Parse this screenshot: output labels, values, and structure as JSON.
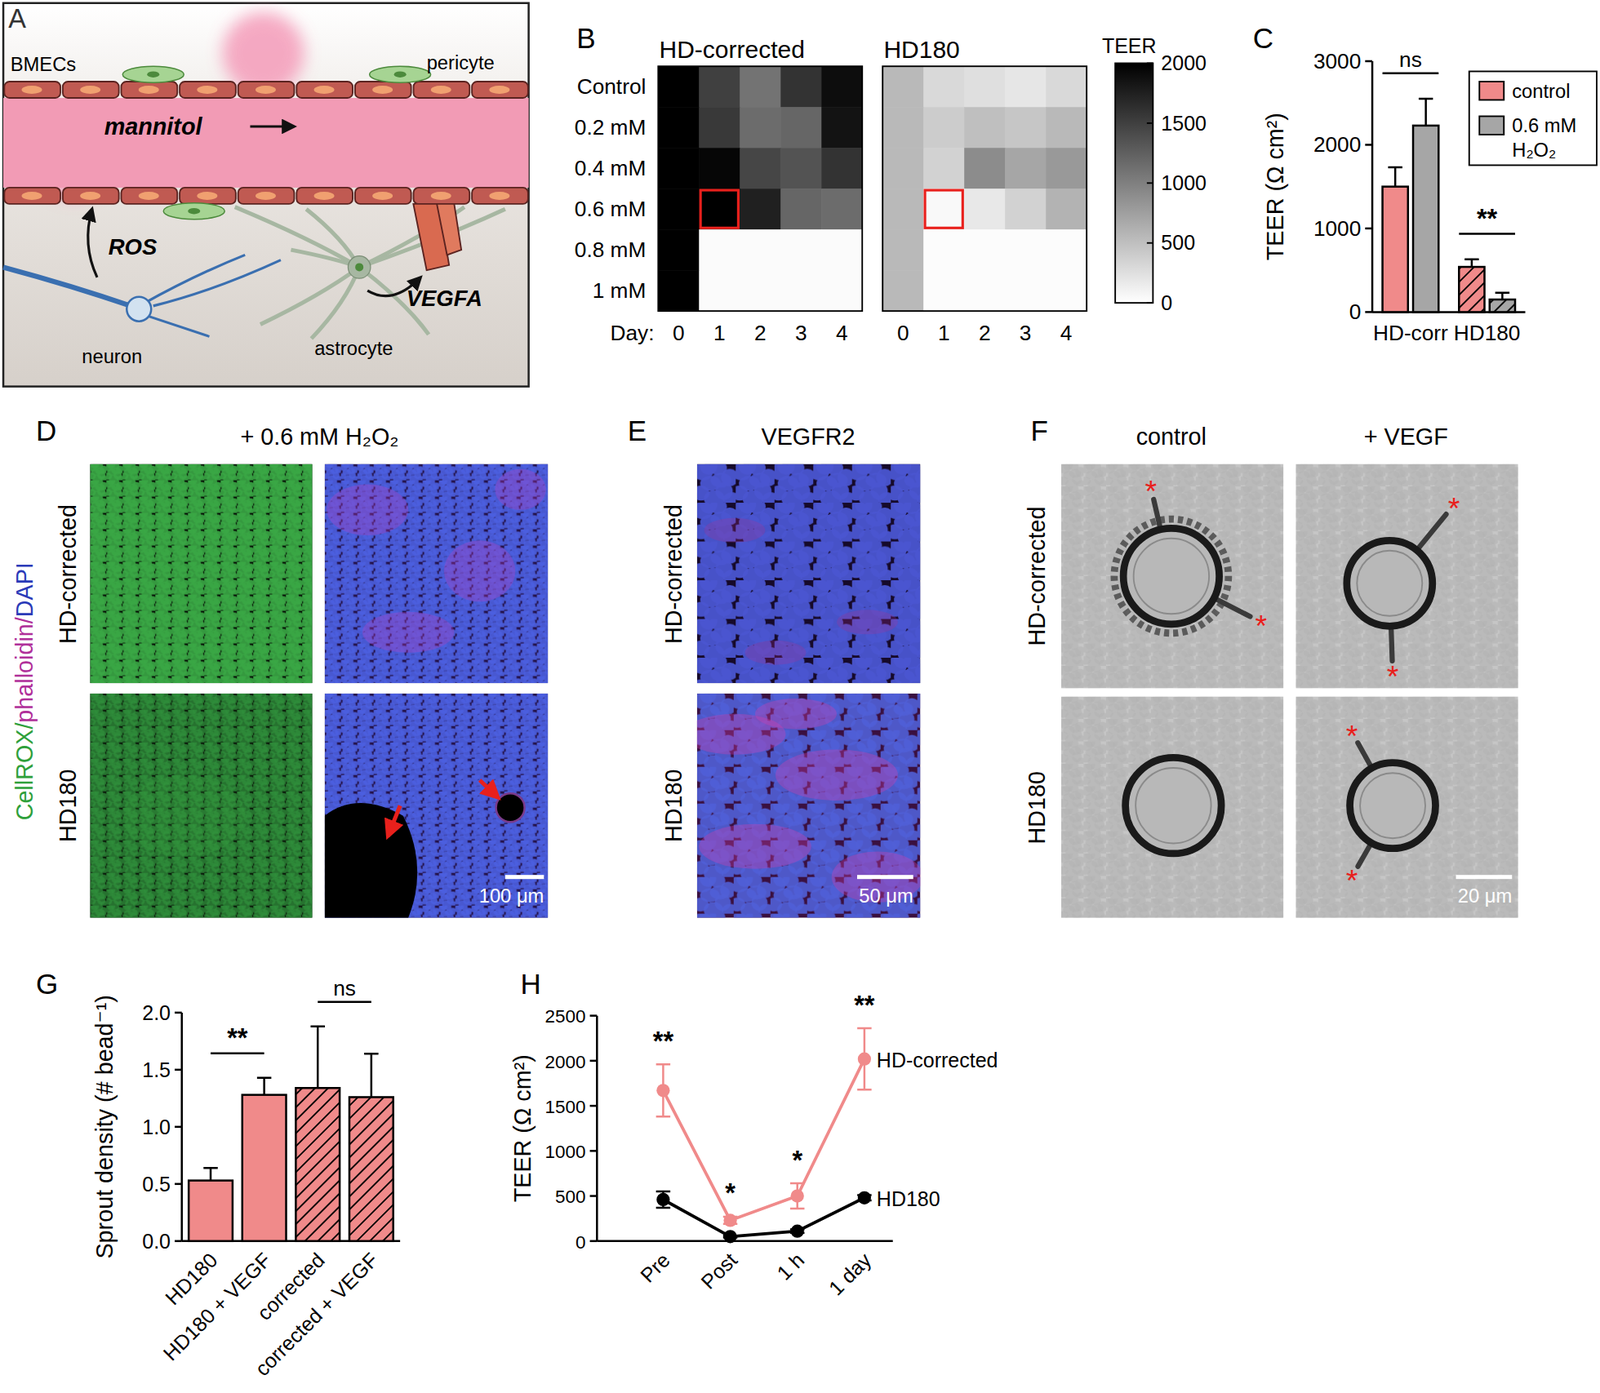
{
  "figure": {
    "A": {
      "label": "A",
      "bmecs": "BMECs",
      "pericyte": "pericyte",
      "mannitol": "mannitol",
      "ros": "ROS",
      "neuron": "neuron",
      "astrocyte": "astrocyte",
      "vegfa": "VEGFA"
    },
    "D": {
      "label": "D",
      "title": "+ 0.6 mM H₂O₂",
      "stains": [
        "CellROX/",
        "phalloidin/",
        "DAPI"
      ],
      "rows": [
        "HD-corrected",
        "HD180"
      ],
      "scale_bar": "100 μm"
    },
    "E": {
      "label": "E",
      "title": "VEGFR2",
      "rows": [
        "HD-corrected",
        "HD180"
      ],
      "scale_bar": "50 μm"
    },
    "F": {
      "label": "F",
      "columns": [
        "control",
        "+ VEGF"
      ],
      "rows": [
        "HD-corrected",
        "HD180"
      ],
      "scale_bar": "20 μm",
      "mark": "*"
    }
  },
  "chart_data": [
    {
      "type": "heatmap",
      "label": "B",
      "categories": [
        "Control",
        "0.2 mM",
        "0.4 mM",
        "0.6 mM",
        "0.8 mM",
        "1 mM"
      ],
      "x": [
        0,
        1,
        2,
        3,
        4
      ],
      "x_label": "Day:",
      "series": [
        {
          "name": "HD-corrected",
          "values": [
            [
              2000,
              1500,
              1100,
              1600,
              1900
            ],
            [
              2000,
              1550,
              1150,
              1200,
              1850
            ],
            [
              2000,
              1950,
              1450,
              1350,
              1600
            ],
            [
              2000,
              2000,
              1750,
              1200,
              1150
            ],
            [
              2000,
              30,
              30,
              30,
              30
            ],
            [
              2000,
              30,
              30,
              30,
              30
            ]
          ]
        },
        {
          "name": "HD180",
          "values": [
            [
              550,
              300,
              250,
              200,
              300
            ],
            [
              550,
              400,
              500,
              450,
              550
            ],
            [
              550,
              350,
              900,
              700,
              800
            ],
            [
              550,
              50,
              180,
              350,
              600
            ],
            [
              550,
              20,
              20,
              20,
              20
            ],
            [
              550,
              20,
              20,
              20,
              20
            ]
          ]
        }
      ],
      "highlight": {
        "category": "0.6 mM",
        "x": 1
      },
      "color_title": "TEER",
      "color_range": [
        0,
        2000
      ],
      "color_ticks": [
        0,
        500,
        1000,
        1500,
        2000
      ]
    },
    {
      "type": "bar",
      "label": "C",
      "categories": [
        "HD-corr",
        "HD180"
      ],
      "y_label": "TEER (Ω cm²)",
      "ylim": [
        0,
        3000
      ],
      "yticks": [
        0,
        1000,
        2000,
        3000
      ],
      "series": [
        {
          "name": "control",
          "color": "#f08a8a",
          "values": [
            1500,
            540
          ],
          "errors": [
            230,
            90
          ]
        },
        {
          "name": "0.6 mM H₂O₂",
          "color": "#a6a6a6",
          "values": [
            2230,
            150
          ],
          "errors": [
            320,
            80
          ]
        }
      ],
      "legend": "top-right",
      "annotations": [
        {
          "text": "ns",
          "category": 0
        },
        {
          "text": "**",
          "category": 1
        }
      ]
    },
    {
      "type": "bar",
      "label": "G",
      "categories": [
        "HD180",
        "HD180 + VEGF",
        "corrected",
        "corrected + VEGF"
      ],
      "y_label": "Sprout density (# bead⁻¹)",
      "ylim": [
        0,
        2
      ],
      "yticks": [
        {
          "value": 0,
          "label": "0.0"
        },
        0.5,
        {
          "value": 1,
          "label": "1.0"
        },
        1.5,
        {
          "value": 2,
          "label": "2.0"
        }
      ],
      "series": [
        {
          "color": "#f08a8a",
          "values": [
            0.53,
            1.28,
            1.34,
            1.26
          ],
          "errors": [
            0.11,
            0.15,
            0.54,
            0.38
          ]
        }
      ],
      "annotations": [
        {
          "text": "**",
          "categories": [
            0,
            1
          ]
        },
        {
          "text": "ns",
          "categories": [
            2,
            3
          ]
        }
      ]
    },
    {
      "type": "line",
      "label": "H",
      "categories": [
        "Pre",
        "Post",
        "1 h",
        "1 day"
      ],
      "y_label": "TEER (Ω cm²)",
      "ylim": [
        0,
        2500
      ],
      "yticks": [
        0,
        500,
        1000,
        1500,
        2000,
        2500
      ],
      "series": [
        {
          "name": "HD-corrected",
          "color": "#f08a8a",
          "marker": "circle",
          "values": [
            1670,
            230,
            500,
            2020
          ],
          "errors": [
            290,
            40,
            140,
            340
          ]
        },
        {
          "name": "HD180",
          "color": "#000000",
          "marker": "circle",
          "values": [
            460,
            50,
            110,
            480
          ],
          "errors": [
            90,
            10,
            20,
            30
          ]
        }
      ],
      "annotations": [
        {
          "text": "**",
          "category": 0
        },
        {
          "text": "*",
          "category": 1
        },
        {
          "text": "*",
          "category": 2
        },
        {
          "text": "**",
          "category": 3
        }
      ]
    }
  ]
}
